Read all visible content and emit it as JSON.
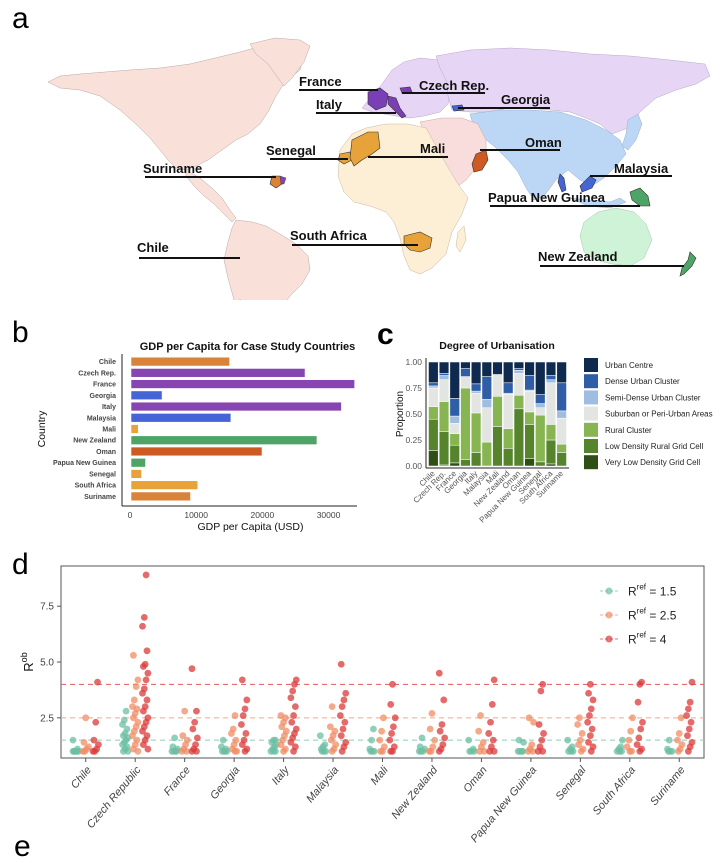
{
  "panels": {
    "a": "a",
    "b": "b",
    "c": "c",
    "d": "d",
    "e_partial": "e"
  },
  "map": {
    "labels": [
      {
        "country": "France",
        "color": "#7b3fb5"
      },
      {
        "country": "Czech Rep.",
        "color": "#7b3fb5"
      },
      {
        "country": "Italy",
        "color": "#7b3fb5"
      },
      {
        "country": "Georgia",
        "color": "#4565d6"
      },
      {
        "country": "Senegal",
        "color": "#e8a23a"
      },
      {
        "country": "Mali",
        "color": "#e8a23a"
      },
      {
        "country": "Oman",
        "color": "#cc5a22"
      },
      {
        "country": "Suriname",
        "color": "#d8823a"
      },
      {
        "country": "Malaysia",
        "color": "#4565d6"
      },
      {
        "country": "Papua New Guinea",
        "color": "#4ea466"
      },
      {
        "country": "Chile",
        "color": "#d8823a"
      },
      {
        "country": "South Africa",
        "color": "#e8a23a"
      },
      {
        "country": "New Zealand",
        "color": "#4ea466"
      }
    ],
    "region_colors": {
      "americas": "#f9e0d9",
      "europe": "#e6d5f5",
      "africa": "#fcefd6",
      "middle_east": "#f9dcdc",
      "asia": "#bcd6f5",
      "oceania": "#cff3d6"
    }
  },
  "chart_data": [
    {
      "type": "bar",
      "orientation": "horizontal",
      "title": "GDP per Capita for Case Study Countries",
      "xlabel": "GDP per Capita (USD)",
      "ylabel": "Country",
      "xlim": [
        0,
        34000
      ],
      "xticks": [
        0,
        10000,
        20000,
        30000
      ],
      "xtick_labels": [
        "0",
        "10000",
        "20000",
        "30000"
      ],
      "categories": [
        "Chile",
        "Czech Rep.",
        "France",
        "Georgia",
        "Italy",
        "Malaysia",
        "Mali",
        "New Zealand",
        "Oman",
        "Papua New Guinea",
        "Senegal",
        "South Africa",
        "Suriname"
      ],
      "values": [
        14900,
        26300,
        33800,
        4700,
        31800,
        15100,
        1100,
        28100,
        19800,
        2200,
        1600,
        10100,
        9000
      ],
      "colors": [
        "#d8823a",
        "#8645b0",
        "#8645b0",
        "#4565d6",
        "#8645b0",
        "#4565d6",
        "#e8a23a",
        "#4ea466",
        "#cc5a22",
        "#4ea466",
        "#e8a23a",
        "#e8a23a",
        "#d8823a"
      ]
    },
    {
      "type": "bar",
      "stacked": true,
      "title": "Degree of Urbanisation",
      "ylabel": "Proportion",
      "ylim": [
        0,
        1
      ],
      "yticks": [
        "0.00",
        "0.25",
        "0.50",
        "0.75",
        "1.00"
      ],
      "categories": [
        "Chile",
        "Czech Rep.",
        "France",
        "Georgia",
        "Italy",
        "Malaysia",
        "Mali",
        "New Zealand",
        "Oman",
        "Papua New Guinea",
        "Senegal",
        "South Africa",
        "Suriname"
      ],
      "series": [
        {
          "name": "Very Low Density Grid Cell",
          "color": "#2f4f17",
          "values": [
            0.15,
            0.01,
            0.03,
            0.0,
            0.0,
            0.0,
            0.0,
            0.0,
            0.0,
            0.07,
            0.0,
            0.02,
            0.0
          ]
        },
        {
          "name": "Low Density Rural Grid Cell",
          "color": "#55842d",
          "values": [
            0.3,
            0.32,
            0.17,
            0.06,
            0.13,
            0.0,
            0.38,
            0.17,
            0.55,
            0.33,
            0.04,
            0.23,
            0.13
          ]
        },
        {
          "name": "Rural Cluster",
          "color": "#86b551",
          "values": [
            0.12,
            0.29,
            0.11,
            0.69,
            0.38,
            0.23,
            0.29,
            0.19,
            0.13,
            0.12,
            0.45,
            0.15,
            0.08
          ]
        },
        {
          "name": "Suburban or Peri-Urban Areas",
          "color": "#e2e5e2",
          "values": [
            0.18,
            0.21,
            0.1,
            0.11,
            0.19,
            0.33,
            0.21,
            0.33,
            0.21,
            0.2,
            0.07,
            0.4,
            0.25
          ]
        },
        {
          "name": "Semi-Dense Urban Cluster",
          "color": "#9fbde0",
          "values": [
            0.02,
            0.04,
            0.07,
            0.0,
            0.02,
            0.08,
            0.0,
            0.01,
            0.03,
            0.01,
            0.04,
            0.03,
            0.07
          ]
        },
        {
          "name": "Dense Urban Cluster",
          "color": "#2f5ea6",
          "values": [
            0.03,
            0.02,
            0.17,
            0.08,
            0.07,
            0.22,
            0.0,
            0.1,
            0.02,
            0.14,
            0.09,
            0.04,
            0.27
          ]
        },
        {
          "name": "Urban Centre",
          "color": "#0f2a4f",
          "values": [
            0.2,
            0.11,
            0.35,
            0.06,
            0.21,
            0.14,
            0.12,
            0.2,
            0.06,
            0.13,
            0.31,
            0.13,
            0.2
          ]
        }
      ],
      "legend_order": [
        "Urban Centre",
        "Dense Urban Cluster",
        "Semi-Dense Urban Cluster",
        "Suburban or Peri-Urban Areas",
        "Rural Cluster",
        "Low Density Rural Grid Cell",
        "Very Low Density Grid Cell"
      ],
      "legend_placement": "right"
    },
    {
      "type": "scatter",
      "ylabel": "R",
      "ylabel_sup": "ob",
      "ylim": [
        0.7,
        9.3
      ],
      "yticks": [
        2.5,
        5.0,
        7.5
      ],
      "ytick_labels": [
        "2.5",
        "5.0",
        "7.5"
      ],
      "categories": [
        "Chile",
        "Czech Republic",
        "France",
        "Georgia",
        "Italy",
        "Malaysia",
        "Mali",
        "New Zealand",
        "Oman",
        "Papua New Guinea",
        "Senegal",
        "South Africa",
        "Suriname"
      ],
      "reference_lines": [
        {
          "value": 1.5,
          "color": "#8fcbb8"
        },
        {
          "value": 2.5,
          "color": "#f4a889"
        },
        {
          "value": 4.0,
          "color": "#e2585a"
        }
      ],
      "legend_placement": "top-right",
      "legend": [
        {
          "label_main": "R",
          "label_sup": "ref",
          "label_rest": " = 1.5",
          "color": "#6cbfa3"
        },
        {
          "label_main": "R",
          "label_sup": "ref",
          "label_rest": " = 2.5",
          "color": "#f08c64"
        },
        {
          "label_main": "R",
          "label_sup": "ref",
          "label_rest": " = 4",
          "color": "#dc3a3a"
        }
      ],
      "series": [
        {
          "name": "Rref = 1.5",
          "color": "#6cbfa3",
          "max_values": [
            1.5,
            2.8,
            1.6,
            1.5,
            1.5,
            1.7,
            2.0,
            1.6,
            1.5,
            1.5,
            1.5,
            1.5,
            1.5
          ],
          "points": [
            [
              1.0,
              1.0,
              1.0,
              1.0,
              1.0,
              1.0,
              1.1,
              1.5
            ],
            [
              1.0,
              1.0,
              1.1,
              1.2,
              1.3,
              1.4,
              1.5,
              1.6,
              1.7,
              1.8,
              2.0,
              2.2,
              2.4,
              2.8
            ],
            [
              1.0,
              1.0,
              1.0,
              1.0,
              1.1,
              1.2,
              1.6
            ],
            [
              1.0,
              1.0,
              1.0,
              1.0,
              1.1,
              1.2,
              1.5
            ],
            [
              1.0,
              1.0,
              1.0,
              1.1,
              1.2,
              1.3,
              1.4,
              1.5,
              1.5
            ],
            [
              1.0,
              1.0,
              1.0,
              1.1,
              1.2,
              1.3,
              1.7
            ],
            [
              1.0,
              1.0,
              1.0,
              1.1,
              1.5,
              2.0
            ],
            [
              1.0,
              1.0,
              1.0,
              1.1,
              1.2,
              1.6
            ],
            [
              1.0,
              1.0,
              1.0,
              1.1,
              1.5
            ],
            [
              1.0,
              1.0,
              1.0,
              1.0,
              1.4,
              1.5
            ],
            [
              1.0,
              1.0,
              1.0,
              1.1,
              1.2,
              1.5
            ],
            [
              1.0,
              1.0,
              1.0,
              1.1,
              1.2,
              1.5
            ],
            [
              1.0,
              1.0,
              1.0,
              1.1,
              1.5
            ]
          ]
        },
        {
          "name": "Rref = 2.5",
          "color": "#f08c64",
          "max_values": [
            2.5,
            5.3,
            2.8,
            2.6,
            2.6,
            3.0,
            2.5,
            2.7,
            2.6,
            2.5,
            2.5,
            2.5,
            2.5
          ],
          "points": [
            [
              1.0,
              1.0,
              1.1,
              1.2,
              1.4,
              2.5
            ],
            [
              1.0,
              1.1,
              1.3,
              1.5,
              1.7,
              1.9,
              2.1,
              2.3,
              2.5,
              2.7,
              2.9,
              3.0,
              3.3,
              3.9,
              4.2,
              5.3
            ],
            [
              1.0,
              1.0,
              1.1,
              1.3,
              1.5,
              1.7,
              2.8
            ],
            [
              1.0,
              1.0,
              1.1,
              1.3,
              1.5,
              1.8,
              2.0,
              2.6
            ],
            [
              1.0,
              1.1,
              1.3,
              1.5,
              1.7,
              1.9,
              2.1,
              2.3,
              2.5,
              2.6
            ],
            [
              1.0,
              1.1,
              1.3,
              1.5,
              1.7,
              1.9,
              2.1,
              3.0
            ],
            [
              1.0,
              1.0,
              1.2,
              1.5,
              1.9,
              2.5
            ],
            [
              1.0,
              1.0,
              1.2,
              1.5,
              2.0,
              2.7
            ],
            [
              1.0,
              1.0,
              1.2,
              1.4,
              1.9,
              2.6
            ],
            [
              1.0,
              1.0,
              1.1,
              1.3,
              2.3,
              2.5
            ],
            [
              1.0,
              1.1,
              1.3,
              1.5,
              1.8,
              2.2,
              2.5
            ],
            [
              1.0,
              1.0,
              1.2,
              1.5,
              1.9,
              2.5
            ],
            [
              1.0,
              1.1,
              1.3,
              1.5,
              1.8,
              2.5
            ]
          ]
        },
        {
          "name": "Rref = 4",
          "color": "#dc3a3a",
          "max_values": [
            4.1,
            8.9,
            4.7,
            4.2,
            4.2,
            4.9,
            4.0,
            4.5,
            4.2,
            4.0,
            4.0,
            4.1,
            4.1
          ],
          "points": [
            [
              1.0,
              1.0,
              1.1,
              1.3,
              1.5,
              2.3,
              4.1
            ],
            [
              1.1,
              1.3,
              1.5,
              1.7,
              1.9,
              2.1,
              2.3,
              2.5,
              2.8,
              3.0,
              3.3,
              3.6,
              3.8,
              4.2,
              4.5,
              4.8,
              4.9,
              5.5,
              6.6,
              7.0,
              8.9
            ],
            [
              1.0,
              1.0,
              1.1,
              1.3,
              1.6,
              2.0,
              2.3,
              2.8,
              4.7
            ],
            [
              1.0,
              1.1,
              1.3,
              1.5,
              1.8,
              2.2,
              2.6,
              2.9,
              3.3,
              4.2
            ],
            [
              1.0,
              1.2,
              1.4,
              1.6,
              1.8,
              2.0,
              2.3,
              2.6,
              3.0,
              3.4,
              3.7,
              4.0,
              4.2
            ],
            [
              1.0,
              1.2,
              1.4,
              1.7,
              2.0,
              2.3,
              2.6,
              3.0,
              3.3,
              3.6,
              4.9
            ],
            [
              1.0,
              1.0,
              1.2,
              1.5,
              1.8,
              2.1,
              2.5,
              3.1,
              4.0
            ],
            [
              1.0,
              1.1,
              1.3,
              1.6,
              1.9,
              2.2,
              3.3,
              4.5
            ],
            [
              1.0,
              1.0,
              1.2,
              1.5,
              1.8,
              2.3,
              3.1,
              4.2
            ],
            [
              1.0,
              1.0,
              1.2,
              1.5,
              1.8,
              2.2,
              3.7,
              4.0
            ],
            [
              1.0,
              1.2,
              1.4,
              1.7,
              2.0,
              2.3,
              2.6,
              2.9,
              3.3,
              3.6,
              4.0
            ],
            [
              1.0,
              1.1,
              1.3,
              1.6,
              2.0,
              2.3,
              3.2,
              4.0,
              4.1
            ],
            [
              1.0,
              1.2,
              1.4,
              1.7,
              2.0,
              2.3,
              2.6,
              2.9,
              3.2,
              4.1
            ]
          ]
        }
      ]
    }
  ]
}
